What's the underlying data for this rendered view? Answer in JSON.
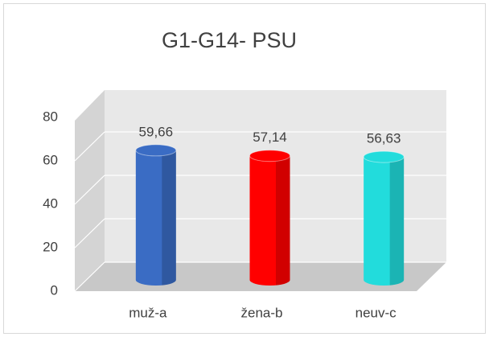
{
  "chart_data": {
    "type": "bar3d",
    "title": "G1-G14- PSU",
    "categories": [
      "muž-a",
      "žena-b",
      "neuv-c"
    ],
    "values": [
      59.66,
      57.14,
      56.63
    ],
    "value_labels": [
      "59,66",
      "57,14",
      "56,63"
    ],
    "colors": [
      "#3a6cc4",
      "#ff0000",
      "#22dcdc"
    ],
    "ylim": [
      0,
      80
    ],
    "yticks": [
      0,
      20,
      40,
      60,
      80
    ],
    "grid": true
  }
}
